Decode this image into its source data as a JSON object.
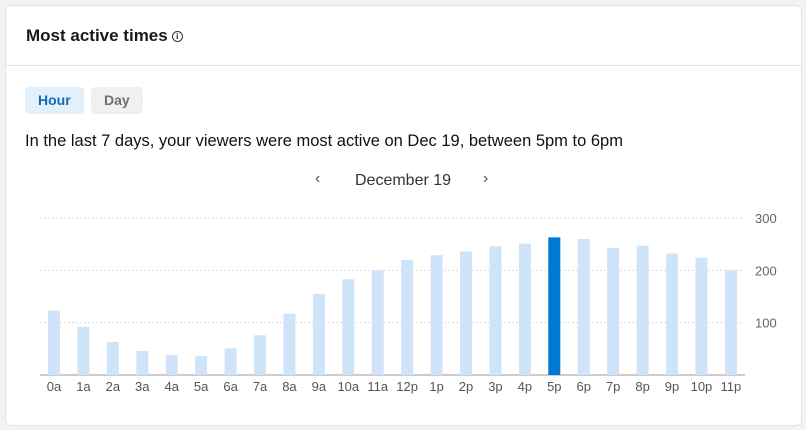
{
  "header": {
    "title": "Most active times",
    "info_icon": "info-icon"
  },
  "tabs": [
    {
      "label": "Hour",
      "active": true
    },
    {
      "label": "Day",
      "active": false
    }
  ],
  "summary": "In the last 7 days, your viewers were most active on Dec 19, between 5pm to 6pm",
  "date_nav": {
    "prev_icon": "chevron-left-icon",
    "label": "December 19",
    "next_icon": "chevron-right-icon"
  },
  "colors": {
    "bar": "#cfe4f8",
    "highlight": "#0078d4"
  },
  "chart_data": {
    "type": "bar",
    "categories": [
      "0a",
      "1a",
      "2a",
      "3a",
      "4a",
      "5a",
      "6a",
      "7a",
      "8a",
      "9a",
      "10a",
      "11a",
      "12p",
      "1p",
      "2p",
      "3p",
      "4p",
      "5p",
      "6p",
      "7p",
      "8p",
      "9p",
      "10p",
      "11p"
    ],
    "values": [
      123,
      92,
      63,
      46,
      38,
      36,
      51,
      76,
      117,
      155,
      183,
      200,
      220,
      229,
      236,
      246,
      251,
      263,
      260,
      243,
      247,
      232,
      224,
      200
    ],
    "highlight": "5p",
    "ylim": [
      0,
      300
    ],
    "yticks": [
      100,
      200,
      300
    ],
    "grid": true,
    "y_axis_side": "right"
  }
}
